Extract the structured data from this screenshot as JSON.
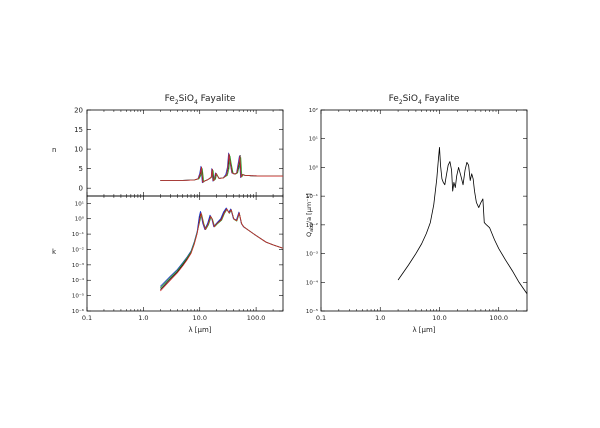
{
  "chart_data": [
    {
      "type": "line",
      "title": "Fe2SiO4 Fayalite",
      "title_parts": {
        "pre": "Fe",
        "sub1": "2",
        "mid": "SiO",
        "sub2": "4",
        "post": " Fayalite"
      },
      "xlabel": "λ [μm]",
      "xscale": "log",
      "xlim": [
        0.1,
        300
      ],
      "xticks": [
        "0.1",
        "1.0",
        "10.0",
        "100.0"
      ],
      "panels": [
        {
          "name": "n",
          "ylabel": "n",
          "yscale": "linear",
          "ylim": [
            -2,
            20
          ],
          "yticks": [
            "0",
            "5",
            "10",
            "15",
            "20"
          ],
          "series": [
            {
              "color": "#000000",
              "x": [
                2,
                5,
                8,
                9.5,
                10.3,
                10.8,
                11.4,
                12,
                14,
                16,
                16.8,
                17.5,
                18.5,
                19.5,
                22,
                26,
                30,
                32,
                33.5,
                35,
                38,
                42,
                46,
                50,
                52,
                54,
                57,
                62,
                80,
                120,
                200,
                300
              ],
              "y": [
                2.0,
                2.0,
                2.1,
                2.4,
                3.6,
                5.3,
                1.5,
                1.8,
                2.2,
                2.8,
                4.8,
                1.9,
                2.2,
                3.8,
                2.5,
                2.6,
                3.4,
                5.2,
                8.6,
                6.8,
                3.9,
                3.6,
                3.9,
                6.1,
                8.4,
                2.8,
                3.5,
                3.3,
                3.2,
                3.1,
                3.1,
                3.1
              ]
            },
            {
              "color": "#1a34c8",
              "x": [
                2,
                5,
                8,
                9.3,
                10.0,
                10.5,
                11.1,
                12,
                14,
                16,
                16.3,
                17.1,
                18.0,
                19.0,
                22,
                26,
                29,
                31,
                32.5,
                34,
                37,
                41,
                45,
                48,
                50.5,
                53,
                56,
                62,
                80,
                120,
                200,
                300
              ],
              "y": [
                2.0,
                2.0,
                2.1,
                2.4,
                3.8,
                5.6,
                1.4,
                1.8,
                2.2,
                2.8,
                5.0,
                1.8,
                2.1,
                3.9,
                2.5,
                2.6,
                3.5,
                5.4,
                9.0,
                7.0,
                3.9,
                3.6,
                3.9,
                6.3,
                8.2,
                2.7,
                3.5,
                3.3,
                3.2,
                3.1,
                3.1,
                3.1
              ]
            },
            {
              "color": "#2e9e2e",
              "x": [
                2,
                5,
                8,
                9.7,
                10.6,
                11.1,
                11.8,
                12.5,
                14,
                16,
                17.3,
                18.0,
                19.0,
                20.0,
                22,
                26,
                31,
                33,
                34.5,
                36,
                39,
                43,
                47,
                51,
                53.5,
                56,
                59,
                64,
                80,
                120,
                200,
                300
              ],
              "y": [
                2.0,
                2.0,
                2.1,
                2.4,
                3.4,
                5.0,
                1.6,
                1.9,
                2.2,
                2.7,
                4.5,
                2.0,
                2.3,
                3.6,
                2.5,
                2.6,
                3.3,
                5.0,
                8.2,
                6.5,
                3.9,
                3.6,
                3.9,
                5.9,
                7.8,
                2.9,
                3.5,
                3.3,
                3.2,
                3.1,
                3.1,
                3.1
              ]
            },
            {
              "color": "#cc2a2a",
              "x": [
                2,
                5,
                8,
                9.4,
                10.2,
                10.7,
                11.3,
                12,
                14,
                16,
                16.6,
                17.3,
                18.3,
                19.3,
                22,
                26,
                30,
                31.5,
                33,
                34.5,
                37.5,
                41.5,
                45.5,
                49,
                51.5,
                54,
                57,
                62,
                80,
                120,
                200,
                300
              ],
              "y": [
                2.0,
                2.0,
                2.1,
                2.4,
                3.7,
                5.4,
                1.5,
                1.8,
                2.2,
                2.8,
                4.9,
                1.9,
                2.2,
                3.8,
                2.5,
                2.6,
                3.4,
                5.3,
                8.8,
                6.9,
                3.9,
                3.6,
                3.9,
                6.2,
                8.1,
                2.8,
                3.5,
                3.3,
                3.2,
                3.1,
                3.1,
                3.1
              ]
            }
          ]
        },
        {
          "name": "k",
          "ylabel": "k",
          "yscale": "log",
          "ylim": [
            1e-06,
            30
          ],
          "yticks": [
            "10⁻⁶",
            "10⁻⁵",
            "10⁻⁴",
            "10⁻³",
            "10⁻²",
            "10⁻¹",
            "10⁰",
            "10¹"
          ],
          "series": [
            {
              "color": "#000000",
              "x": [
                2,
                3,
                4,
                5,
                6,
                7,
                8,
                9,
                10.0,
                10.5,
                11.5,
                12.5,
                14,
                15.5,
                16.5,
                18,
                20,
                24,
                27,
                30,
                33,
                36,
                40,
                45,
                50,
                55,
                60,
                70,
                100,
                150,
                200,
                300
              ],
              "y": [
                2.5e-05,
                0.00012,
                0.00035,
                0.001,
                0.0025,
                0.006,
                0.025,
                0.12,
                1.2,
                2.5,
                0.5,
                0.2,
                0.5,
                1.5,
                1.0,
                0.3,
                0.5,
                0.9,
                2.5,
                4.5,
                2.5,
                4.0,
                1.0,
                0.8,
                2.5,
                0.5,
                0.3,
                0.2,
                0.08,
                0.03,
                0.02,
                0.012
              ]
            },
            {
              "color": "#1a34c8",
              "x": [
                2,
                3,
                4,
                5,
                6,
                7,
                8,
                9,
                9.8,
                10.3,
                11.3,
                12.3,
                13.8,
                15.2,
                16.2,
                17.7,
                19.7,
                23.5,
                26.5,
                29.5,
                32.5,
                35.5,
                39.5,
                44.5,
                49.5,
                54.5,
                59.5,
                70,
                100,
                150,
                200,
                300
              ],
              "y": [
                4e-05,
                0.00018,
                0.0005,
                0.0014,
                0.0034,
                0.008,
                0.032,
                0.15,
                1.4,
                3.0,
                0.5,
                0.2,
                0.5,
                1.7,
                1.1,
                0.3,
                0.5,
                1.0,
                2.8,
                5.0,
                2.6,
                4.3,
                1.0,
                0.8,
                2.7,
                0.5,
                0.3,
                0.2,
                0.08,
                0.03,
                0.02,
                0.012
              ]
            },
            {
              "color": "#2e9e2e",
              "x": [
                2,
                3,
                4,
                5,
                6,
                7,
                8,
                9,
                10.3,
                10.8,
                11.8,
                12.8,
                14.3,
                15.9,
                16.9,
                18.4,
                20.4,
                24.5,
                27.5,
                30.5,
                33.5,
                36.5,
                40.5,
                45.5,
                50.5,
                55.5,
                60.5,
                70,
                100,
                150,
                200,
                300
              ],
              "y": [
                3.2e-05,
                0.00015,
                0.00042,
                0.0012,
                0.003,
                0.007,
                0.028,
                0.13,
                1.0,
                2.0,
                0.5,
                0.2,
                0.4,
                1.3,
                0.9,
                0.3,
                0.45,
                0.8,
                2.2,
                4.0,
                2.2,
                3.6,
                0.9,
                0.7,
                2.2,
                0.45,
                0.3,
                0.2,
                0.08,
                0.03,
                0.02,
                0.012
              ]
            },
            {
              "color": "#cc2a2a",
              "x": [
                2,
                3,
                4,
                5,
                6,
                7,
                8,
                9,
                10.1,
                10.6,
                11.6,
                12.6,
                14.1,
                15.6,
                16.6,
                18.1,
                20.1,
                24.2,
                27.2,
                30.2,
                33.2,
                36.2,
                40.2,
                45.2,
                50.2,
                55.2,
                60.2,
                70,
                100,
                150,
                200,
                300
              ],
              "y": [
                2e-05,
                0.0001,
                0.0003,
                0.00085,
                0.0022,
                0.0055,
                0.022,
                0.11,
                1.1,
                2.3,
                0.5,
                0.2,
                0.45,
                1.4,
                0.95,
                0.3,
                0.48,
                0.85,
                2.4,
                4.3,
                2.4,
                3.8,
                0.95,
                0.75,
                2.4,
                0.48,
                0.3,
                0.2,
                0.08,
                0.03,
                0.02,
                0.012
              ]
            }
          ]
        }
      ]
    },
    {
      "type": "line",
      "title": "Fe2SiO4 Fayalite",
      "title_parts": {
        "pre": "Fe",
        "sub1": "2",
        "mid": "SiO",
        "sub2": "4",
        "post": " Fayalite"
      },
      "xlabel": "λ [μm]",
      "ylabel_parts": {
        "pre": "Q",
        "sub": "abs",
        "post": "/a [μm⁻¹]"
      },
      "xscale": "log",
      "yscale": "log",
      "xlim": [
        0.1,
        300
      ],
      "ylim": [
        1e-05,
        100
      ],
      "xticks": [
        "0.1",
        "1.0",
        "10.0",
        "100.0"
      ],
      "yticks": [
        "10⁻⁵",
        "10⁻⁴",
        "10⁻³",
        "10⁻²",
        "10⁻¹",
        "10⁰",
        "10¹",
        "10²"
      ],
      "series": [
        {
          "color": "#000000",
          "x": [
            2,
            3,
            4,
            5,
            6,
            7,
            8,
            9,
            9.6,
            10.0,
            10.4,
            11.0,
            11.6,
            12.3,
            13,
            14,
            15,
            16,
            16.7,
            17.5,
            18.5,
            19.5,
            21,
            23,
            25,
            27,
            29,
            31,
            33,
            35,
            37,
            39,
            42,
            46,
            50,
            54,
            57,
            62,
            70,
            85,
            100,
            130,
            170,
            220,
            300
          ],
          "y": [
            0.00012,
            0.0004,
            0.001,
            0.0022,
            0.005,
            0.012,
            0.05,
            0.4,
            2.0,
            5.0,
            1.2,
            0.4,
            0.3,
            0.25,
            0.5,
            1.2,
            1.6,
            0.8,
            0.15,
            0.3,
            0.2,
            0.5,
            1.0,
            0.5,
            0.25,
            0.8,
            1.5,
            1.2,
            0.35,
            0.6,
            0.4,
            0.15,
            0.06,
            0.04,
            0.06,
            0.08,
            0.012,
            0.01,
            0.008,
            0.003,
            0.0015,
            0.0006,
            0.00025,
            0.0001,
            4e-05
          ]
        }
      ]
    }
  ]
}
